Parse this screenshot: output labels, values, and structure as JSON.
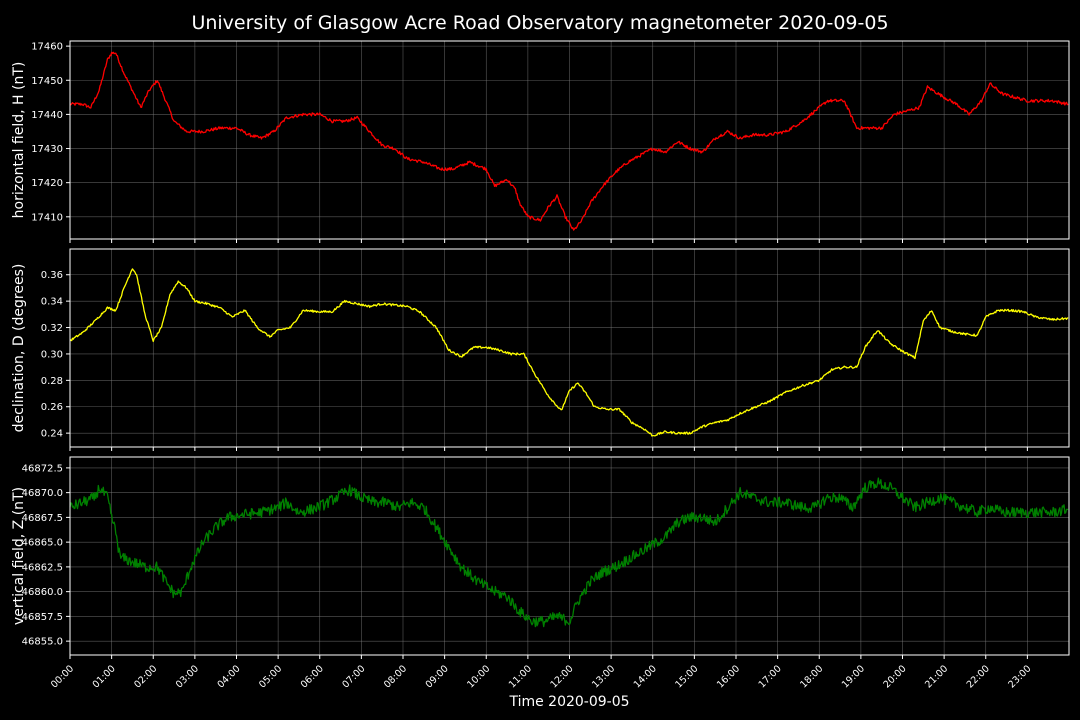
{
  "title": "University of Glasgow Acre Road Observatory magnetometer 2020-09-05",
  "colors": {
    "background": "#000000",
    "axes": "#ffffff",
    "grid": "#808080",
    "h": "#ff0000",
    "d": "#ffff00",
    "z": "#008000"
  },
  "chart_data": [
    {
      "type": "line",
      "ylabel": "horizontal field, H (nT)",
      "ylim": [
        17403.5,
        17461.5
      ],
      "yticks": [
        17410,
        17420,
        17430,
        17440,
        17450,
        17460
      ],
      "ytick_labels": [
        "17410",
        "17420",
        "17430",
        "17440",
        "17450",
        "17460"
      ],
      "grid": true,
      "series": [
        {
          "color": "#ff0000",
          "points": [
            [
              0,
              17443
            ],
            [
              0.3,
              17443
            ],
            [
              0.5,
              17442
            ],
            [
              0.7,
              17447
            ],
            [
              0.9,
              17456
            ],
            [
              1.0,
              17458
            ],
            [
              1.1,
              17458
            ],
            [
              1.3,
              17452
            ],
            [
              1.5,
              17447
            ],
            [
              1.7,
              17442
            ],
            [
              1.9,
              17447
            ],
            [
              2.1,
              17450
            ],
            [
              2.3,
              17444
            ],
            [
              2.5,
              17438
            ],
            [
              2.8,
              17435
            ],
            [
              3.2,
              17435
            ],
            [
              3.6,
              17436
            ],
            [
              4.0,
              17436
            ],
            [
              4.3,
              17434
            ],
            [
              4.6,
              17433
            ],
            [
              4.9,
              17435
            ],
            [
              5.2,
              17439
            ],
            [
              5.6,
              17440
            ],
            [
              6.0,
              17440
            ],
            [
              6.3,
              17438
            ],
            [
              6.6,
              17438
            ],
            [
              6.9,
              17439
            ],
            [
              7.2,
              17435
            ],
            [
              7.5,
              17431
            ],
            [
              7.8,
              17430
            ],
            [
              8.1,
              17427
            ],
            [
              8.5,
              17426
            ],
            [
              8.9,
              17424
            ],
            [
              9.2,
              17424
            ],
            [
              9.6,
              17426
            ],
            [
              10.0,
              17424
            ],
            [
              10.2,
              17419
            ],
            [
              10.5,
              17421
            ],
            [
              10.7,
              17418
            ],
            [
              10.8,
              17414
            ],
            [
              11.0,
              17410
            ],
            [
              11.3,
              17409
            ],
            [
              11.5,
              17413
            ],
            [
              11.7,
              17416
            ],
            [
              11.9,
              17410
            ],
            [
              12.1,
              17406
            ],
            [
              12.3,
              17409
            ],
            [
              12.5,
              17414
            ],
            [
              12.8,
              17419
            ],
            [
              13.1,
              17423
            ],
            [
              13.4,
              17426
            ],
            [
              13.7,
              17428
            ],
            [
              14.0,
              17430
            ],
            [
              14.3,
              17429
            ],
            [
              14.6,
              17432
            ],
            [
              14.9,
              17430
            ],
            [
              15.2,
              17429
            ],
            [
              15.5,
              17433
            ],
            [
              15.8,
              17435
            ],
            [
              16.1,
              17433
            ],
            [
              16.4,
              17434
            ],
            [
              16.8,
              17434
            ],
            [
              17.2,
              17435
            ],
            [
              17.6,
              17438
            ],
            [
              17.9,
              17441
            ],
            [
              18.2,
              17444
            ],
            [
              18.6,
              17444
            ],
            [
              18.9,
              17436
            ],
            [
              19.2,
              17436
            ],
            [
              19.5,
              17436
            ],
            [
              19.8,
              17440
            ],
            [
              20.1,
              17441
            ],
            [
              20.4,
              17442
            ],
            [
              20.6,
              17448
            ],
            [
              21.0,
              17445
            ],
            [
              21.3,
              17443
            ],
            [
              21.6,
              17440
            ],
            [
              21.9,
              17444
            ],
            [
              22.1,
              17449
            ],
            [
              22.4,
              17446
            ],
            [
              22.7,
              17445
            ],
            [
              23.0,
              17444
            ],
            [
              23.3,
              17444
            ],
            [
              23.6,
              17444
            ],
            [
              23.98,
              17443
            ]
          ]
        }
      ]
    },
    {
      "type": "line",
      "ylabel": "declination, D (degrees)",
      "ylim": [
        0.2295,
        0.3795
      ],
      "yticks": [
        0.24,
        0.26,
        0.28,
        0.3,
        0.32,
        0.34,
        0.36
      ],
      "ytick_labels": [
        "0.24",
        "0.26",
        "0.28",
        "0.30",
        "0.32",
        "0.34",
        "0.36"
      ],
      "grid": true,
      "series": [
        {
          "color": "#ffff00",
          "points": [
            [
              0,
              0.31
            ],
            [
              0.3,
              0.316
            ],
            [
              0.6,
              0.325
            ],
            [
              0.9,
              0.335
            ],
            [
              1.1,
              0.333
            ],
            [
              1.3,
              0.35
            ],
            [
              1.5,
              0.365
            ],
            [
              1.6,
              0.36
            ],
            [
              1.8,
              0.33
            ],
            [
              2.0,
              0.31
            ],
            [
              2.2,
              0.32
            ],
            [
              2.4,
              0.345
            ],
            [
              2.6,
              0.355
            ],
            [
              2.8,
              0.35
            ],
            [
              3.0,
              0.34
            ],
            [
              3.3,
              0.338
            ],
            [
              3.6,
              0.335
            ],
            [
              3.9,
              0.328
            ],
            [
              4.2,
              0.333
            ],
            [
              4.5,
              0.32
            ],
            [
              4.8,
              0.313
            ],
            [
              5.0,
              0.318
            ],
            [
              5.3,
              0.32
            ],
            [
              5.6,
              0.333
            ],
            [
              6.0,
              0.332
            ],
            [
              6.3,
              0.332
            ],
            [
              6.6,
              0.34
            ],
            [
              6.9,
              0.338
            ],
            [
              7.2,
              0.336
            ],
            [
              7.5,
              0.338
            ],
            [
              7.8,
              0.337
            ],
            [
              8.1,
              0.336
            ],
            [
              8.4,
              0.332
            ],
            [
              8.8,
              0.32
            ],
            [
              9.1,
              0.303
            ],
            [
              9.4,
              0.298
            ],
            [
              9.7,
              0.305
            ],
            [
              10.0,
              0.305
            ],
            [
              10.3,
              0.303
            ],
            [
              10.6,
              0.3
            ],
            [
              10.9,
              0.3
            ],
            [
              11.2,
              0.283
            ],
            [
              11.5,
              0.268
            ],
            [
              11.8,
              0.257
            ],
            [
              12.0,
              0.272
            ],
            [
              12.2,
              0.278
            ],
            [
              12.4,
              0.27
            ],
            [
              12.6,
              0.26
            ],
            [
              12.9,
              0.258
            ],
            [
              13.2,
              0.258
            ],
            [
              13.5,
              0.248
            ],
            [
              13.8,
              0.243
            ],
            [
              14.0,
              0.238
            ],
            [
              14.3,
              0.241
            ],
            [
              14.6,
              0.24
            ],
            [
              14.9,
              0.24
            ],
            [
              15.2,
              0.245
            ],
            [
              15.5,
              0.248
            ],
            [
              15.8,
              0.25
            ],
            [
              16.1,
              0.255
            ],
            [
              16.4,
              0.259
            ],
            [
              16.8,
              0.264
            ],
            [
              17.2,
              0.271
            ],
            [
              17.6,
              0.276
            ],
            [
              18.0,
              0.28
            ],
            [
              18.3,
              0.288
            ],
            [
              18.6,
              0.29
            ],
            [
              18.9,
              0.29
            ],
            [
              19.1,
              0.305
            ],
            [
              19.4,
              0.318
            ],
            [
              19.7,
              0.308
            ],
            [
              20.0,
              0.302
            ],
            [
              20.3,
              0.297
            ],
            [
              20.5,
              0.325
            ],
            [
              20.7,
              0.333
            ],
            [
              20.9,
              0.32
            ],
            [
              21.2,
              0.317
            ],
            [
              21.5,
              0.315
            ],
            [
              21.8,
              0.314
            ],
            [
              22.0,
              0.328
            ],
            [
              22.3,
              0.333
            ],
            [
              22.6,
              0.333
            ],
            [
              22.9,
              0.332
            ],
            [
              23.2,
              0.328
            ],
            [
              23.6,
              0.326
            ],
            [
              23.98,
              0.327
            ]
          ]
        }
      ]
    },
    {
      "type": "line",
      "xlabel": "Time 2020-09-05",
      "ylabel": "vertical field, Z (nT)",
      "ylim": [
        46853.6,
        46873.6
      ],
      "yticks": [
        46855.0,
        46857.5,
        46860.0,
        46862.5,
        46865.0,
        46867.5,
        46870.0,
        46872.5
      ],
      "ytick_labels": [
        "46855.0",
        "46857.5",
        "46860.0",
        "46862.5",
        "46865.0",
        "46867.5",
        "46870.0",
        "46872.5"
      ],
      "grid": true,
      "series": [
        {
          "color": "#008000",
          "points": [
            [
              0,
              46868.5
            ],
            [
              0.3,
              46869.0
            ],
            [
              0.6,
              46869.5
            ],
            [
              0.7,
              46870.5
            ],
            [
              0.9,
              46869.5
            ],
            [
              1.0,
              46867.5
            ],
            [
              1.1,
              46866.0
            ],
            [
              1.2,
              46863.5
            ],
            [
              1.5,
              46863.0
            ],
            [
              1.8,
              46862.5
            ],
            [
              2.1,
              46862.5
            ],
            [
              2.3,
              46861.0
            ],
            [
              2.5,
              46859.8
            ],
            [
              2.7,
              46860.0
            ],
            [
              2.9,
              46862.5
            ],
            [
              3.2,
              46865.0
            ],
            [
              3.5,
              46866.5
            ],
            [
              3.8,
              46867.5
            ],
            [
              4.2,
              46867.8
            ],
            [
              4.6,
              46868.0
            ],
            [
              5.0,
              46868.5
            ],
            [
              5.2,
              46869.0
            ],
            [
              5.5,
              46868.0
            ],
            [
              5.8,
              46868.3
            ],
            [
              6.1,
              46868.8
            ],
            [
              6.4,
              46869.5
            ],
            [
              6.7,
              46870.3
            ],
            [
              7.0,
              46869.5
            ],
            [
              7.3,
              46869.0
            ],
            [
              7.6,
              46869.0
            ],
            [
              7.9,
              46868.5
            ],
            [
              8.2,
              46869.0
            ],
            [
              8.5,
              46868.5
            ],
            [
              8.8,
              46866.5
            ],
            [
              9.1,
              46864.5
            ],
            [
              9.4,
              46862.5
            ],
            [
              9.8,
              46861.0
            ],
            [
              10.2,
              46860.0
            ],
            [
              10.5,
              46859.5
            ],
            [
              10.8,
              46858.0
            ],
            [
              11.1,
              46857.0
            ],
            [
              11.4,
              46857.0
            ],
            [
              11.7,
              46857.5
            ],
            [
              12.0,
              46857.0
            ],
            [
              12.2,
              46859.0
            ],
            [
              12.5,
              46861.0
            ],
            [
              12.8,
              46862.0
            ],
            [
              13.1,
              46862.5
            ],
            [
              13.5,
              46863.5
            ],
            [
              13.9,
              46864.5
            ],
            [
              14.3,
              46865.5
            ],
            [
              14.6,
              46867.0
            ],
            [
              14.9,
              46867.5
            ],
            [
              15.2,
              46867.5
            ],
            [
              15.5,
              46867.0
            ],
            [
              15.8,
              46868.5
            ],
            [
              16.1,
              46870.0
            ],
            [
              16.4,
              46869.5
            ],
            [
              16.8,
              46869.0
            ],
            [
              17.2,
              46869.0
            ],
            [
              17.6,
              46868.5
            ],
            [
              17.9,
              46868.5
            ],
            [
              18.2,
              46869.5
            ],
            [
              18.5,
              46869.5
            ],
            [
              18.8,
              46868.5
            ],
            [
              19.1,
              46870.5
            ],
            [
              19.4,
              46871.0
            ],
            [
              19.7,
              46870.5
            ],
            [
              20.0,
              46869.5
            ],
            [
              20.3,
              46868.5
            ],
            [
              20.6,
              46869.0
            ],
            [
              20.9,
              46869.5
            ],
            [
              21.2,
              46869.0
            ],
            [
              21.5,
              46868.5
            ],
            [
              21.8,
              46868.0
            ],
            [
              22.1,
              46868.5
            ],
            [
              22.4,
              46868.0
            ],
            [
              22.8,
              46868.0
            ],
            [
              23.2,
              46868.0
            ],
            [
              23.6,
              46868.0
            ],
            [
              23.98,
              46868.3
            ]
          ]
        }
      ]
    }
  ],
  "x_axis": {
    "xlim": [
      0,
      24
    ],
    "tick_labels": [
      "00:00",
      "01:00",
      "02:00",
      "03:00",
      "04:00",
      "05:00",
      "06:00",
      "07:00",
      "08:00",
      "09:00",
      "10:00",
      "11:00",
      "12:00",
      "13:00",
      "14:00",
      "15:00",
      "16:00",
      "17:00",
      "18:00",
      "19:00",
      "20:00",
      "21:00",
      "22:00",
      "23:00"
    ]
  }
}
